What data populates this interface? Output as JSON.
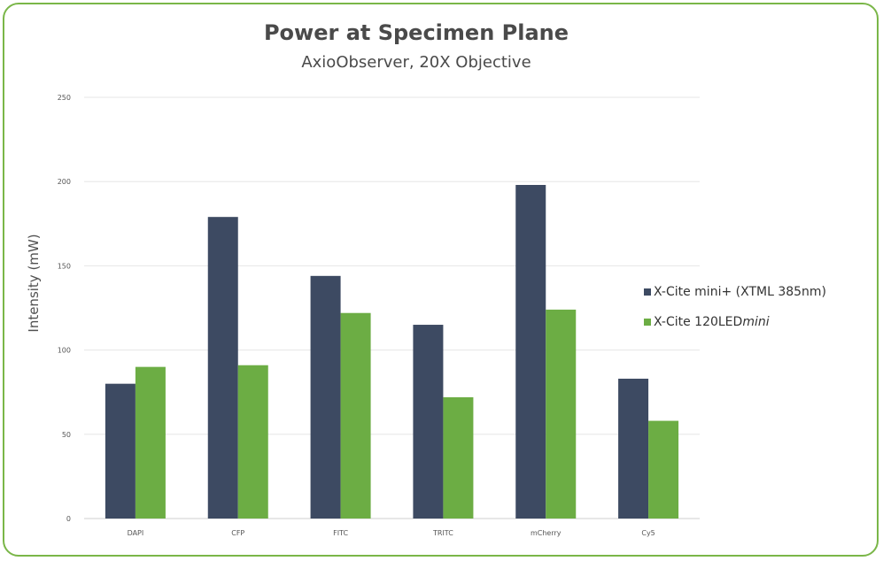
{
  "chart_data": {
    "type": "bar",
    "title": "Power at Specimen Plane",
    "subtitle": "AxioObserver, 20X Objective",
    "xlabel": "",
    "ylabel": "Intensity (mW)",
    "ylim": [
      0,
      250
    ],
    "yticks": [
      "0",
      "50",
      "100",
      "150",
      "200",
      "250"
    ],
    "categories": [
      "DAPI",
      "CFP",
      "FITC",
      "TRITC",
      "mCherry",
      "Cy5"
    ],
    "series": [
      {
        "name": "X-Cite mini+ (XTML 385nm)",
        "name_main": "X-Cite mini+ (XTML 385nm)",
        "name_suffix": "",
        "color": "#3d4a62",
        "values": [
          80,
          179,
          144,
          115,
          198,
          83
        ]
      },
      {
        "name": "X-Cite 120LEDmini",
        "name_main": "X-Cite 120LED",
        "name_suffix": "mini",
        "color": "#6cad44",
        "values": [
          90,
          91,
          122,
          72,
          124,
          58
        ]
      }
    ],
    "grid": true,
    "legend_position": "right"
  },
  "colors": {
    "frame": "#7ab648",
    "grid": "#e6e6e6",
    "text": "#4a4a4a"
  }
}
